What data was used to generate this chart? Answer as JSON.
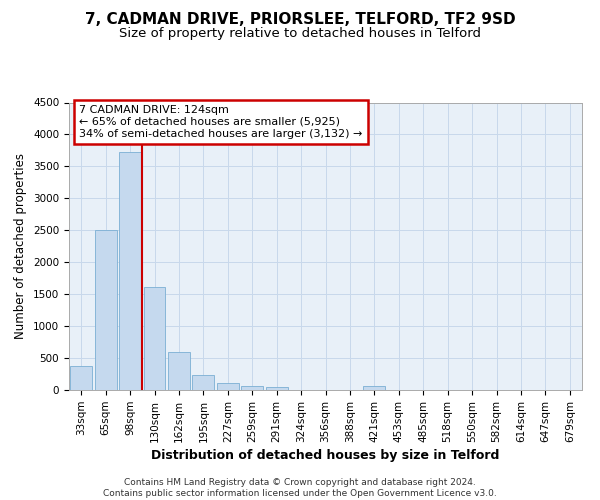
{
  "title_line1": "7, CADMAN DRIVE, PRIORSLEE, TELFORD, TF2 9SD",
  "title_line2": "Size of property relative to detached houses in Telford",
  "xlabel": "Distribution of detached houses by size in Telford",
  "ylabel": "Number of detached properties",
  "categories": [
    "33sqm",
    "65sqm",
    "98sqm",
    "130sqm",
    "162sqm",
    "195sqm",
    "227sqm",
    "259sqm",
    "291sqm",
    "324sqm",
    "356sqm",
    "388sqm",
    "421sqm",
    "453sqm",
    "485sqm",
    "518sqm",
    "550sqm",
    "582sqm",
    "614sqm",
    "647sqm",
    "679sqm"
  ],
  "values": [
    370,
    2500,
    3720,
    1620,
    600,
    240,
    110,
    65,
    50,
    0,
    0,
    0,
    60,
    0,
    0,
    0,
    0,
    0,
    0,
    0,
    0
  ],
  "bar_color": "#c5d9ee",
  "bar_edgecolor": "#7bafd4",
  "vline_color": "#cc0000",
  "annotation_line1": "7 CADMAN DRIVE: 124sqm",
  "annotation_line2": "← 65% of detached houses are smaller (5,925)",
  "annotation_line3": "34% of semi-detached houses are larger (3,132) →",
  "annotation_box_color": "#ffffff",
  "annotation_box_edgecolor": "#cc0000",
  "ylim": [
    0,
    4500
  ],
  "yticks": [
    0,
    500,
    1000,
    1500,
    2000,
    2500,
    3000,
    3500,
    4000,
    4500
  ],
  "grid_color": "#c8d8eb",
  "background_color": "#e8f0f8",
  "footer_text": "Contains HM Land Registry data © Crown copyright and database right 2024.\nContains public sector information licensed under the Open Government Licence v3.0.",
  "title_fontsize": 11,
  "subtitle_fontsize": 9.5,
  "xlabel_fontsize": 9,
  "ylabel_fontsize": 8.5,
  "tick_fontsize": 7.5,
  "annotation_fontsize": 8,
  "footer_fontsize": 6.5
}
